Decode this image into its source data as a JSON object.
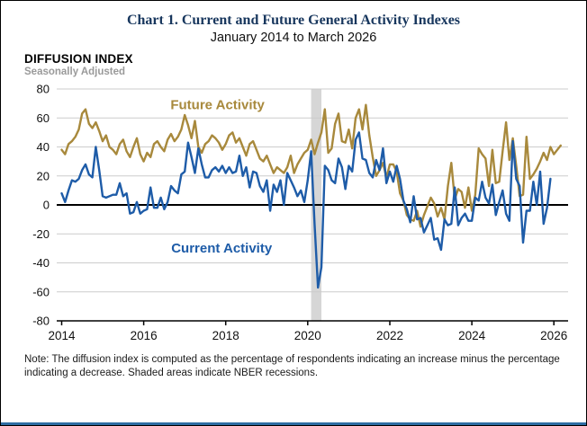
{
  "note": {
    "text": "Note: The diffusion index is computed as the percentage of respondents indicating an increase minus the percentage indicating a decrease. Shaded areas indicate NBER recessions."
  },
  "chart_data": {
    "type": "line",
    "title": "Chart 1. Current and Future General Activity Indexes",
    "subtitle": "January 2014 to March 2026",
    "ylabel": "DIFFUSION INDEX",
    "ylabel_sub": "Seasonally Adjusted",
    "ylim": [
      -80,
      80
    ],
    "ytick_step": 20,
    "x_start_year": 2014,
    "x_start_month": 1,
    "x_end_year": 2026,
    "x_end_month": 3,
    "xticks": [
      2014,
      2016,
      2018,
      2020,
      2022,
      2024,
      2026
    ],
    "grid": true,
    "colors": {
      "recession": "#d6d6d6",
      "grid": "#cccccc",
      "zero_line": "#000000"
    },
    "recession_bands": [
      {
        "start": 2020.083,
        "end": 2020.333
      }
    ],
    "annotations": [
      {
        "text": "Future Activity",
        "x": 2017.8,
        "y": 66,
        "series": 0
      },
      {
        "text": "Current Activity",
        "x": 2017.9,
        "y": -33,
        "series": 1
      }
    ],
    "series": [
      {
        "name": "Future Activity",
        "color": "#a8893c",
        "values": [
          38,
          35,
          42,
          44,
          47,
          52,
          63,
          66,
          56,
          53,
          57,
          51,
          44,
          48,
          40,
          38,
          35,
          42,
          45,
          37,
          33,
          40,
          46,
          35,
          30,
          36,
          33,
          42,
          44,
          40,
          37,
          45,
          49,
          44,
          47,
          52,
          62,
          55,
          46,
          58,
          40,
          36,
          42,
          44,
          48,
          46,
          43,
          38,
          42,
          48,
          50,
          43,
          46,
          40,
          34,
          42,
          44,
          38,
          32,
          30,
          34,
          28,
          22,
          26,
          24,
          22,
          26,
          34,
          22,
          28,
          32,
          36,
          38,
          45,
          35,
          43,
          50,
          66,
          36,
          39,
          56,
          63,
          44,
          43,
          52,
          39,
          60,
          66,
          52,
          69,
          48,
          33,
          20,
          24,
          29,
          19,
          28,
          28,
          23,
          8,
          3,
          -7,
          -10,
          -11,
          -4,
          -15,
          -7,
          -1,
          5,
          1,
          -8,
          -2,
          -10,
          13,
          29,
          4,
          11,
          9,
          -2,
          12,
          -4,
          7,
          39,
          35,
          32,
          13,
          38,
          15,
          16,
          37,
          57,
          31,
          46,
          27,
          6,
          7,
          47,
          18,
          21,
          25,
          30,
          36,
          31,
          40,
          35,
          38,
          41
        ]
      },
      {
        "name": "Current Activity",
        "color": "#1e5ca8",
        "values": [
          8,
          2,
          10,
          17,
          16,
          18,
          24,
          28,
          21,
          19,
          40,
          24,
          6,
          5,
          6,
          7,
          7,
          15,
          6,
          8,
          -6,
          -5,
          2,
          -6,
          -4,
          -3,
          12,
          -2,
          -2,
          5,
          -3,
          2,
          13,
          10,
          8,
          21,
          23,
          43,
          33,
          22,
          39,
          28,
          19,
          19,
          24,
          26,
          23,
          27,
          22,
          26,
          22,
          23,
          34,
          20,
          26,
          12,
          23,
          22,
          13,
          9,
          17,
          -4,
          14,
          9,
          17,
          0,
          22,
          17,
          12,
          6,
          10,
          2,
          17,
          37,
          -13,
          -57,
          -43,
          27,
          24,
          17,
          15,
          32,
          26,
          11,
          27,
          23,
          45,
          50,
          32,
          31,
          22,
          19,
          31,
          24,
          39,
          15,
          23,
          16,
          27,
          18,
          3,
          -3,
          -12,
          6,
          -10,
          -9,
          -19,
          -14,
          -9,
          -24,
          -23,
          -31,
          -10,
          -14,
          -13,
          12,
          -14,
          -9,
          -6,
          -11,
          -11,
          5,
          3,
          16,
          5,
          1,
          14,
          -7,
          2,
          10,
          -6,
          -11,
          44,
          18,
          13,
          -26,
          -4,
          -4,
          16,
          0,
          23,
          -13,
          -2,
          18,
          null,
          null,
          null
        ]
      }
    ]
  }
}
